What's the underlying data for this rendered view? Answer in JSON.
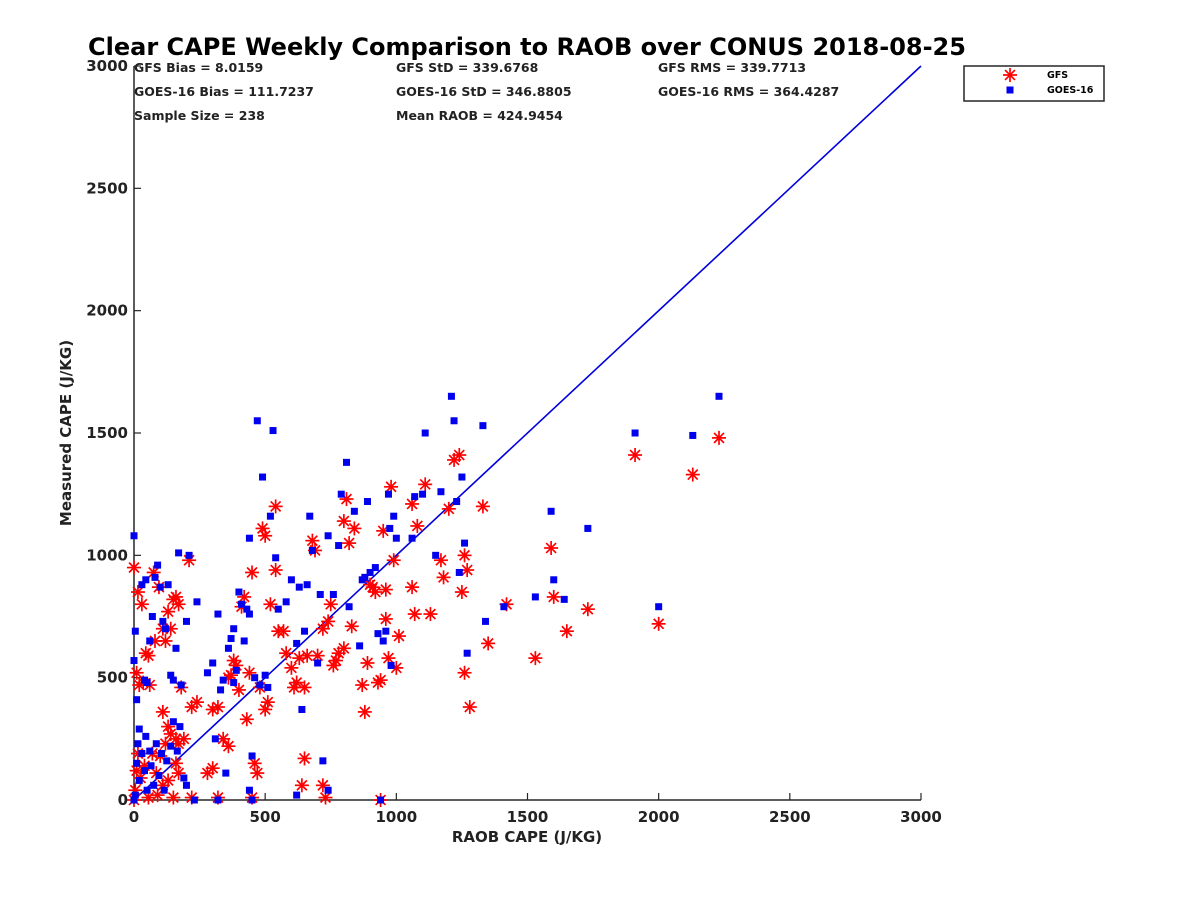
{
  "chart_data": {
    "type": "scatter",
    "title": "Clear CAPE Weekly Comparison to RAOB over CONUS 2018-08-25",
    "xlabel": "RAOB CAPE (J/KG)",
    "ylabel": "Measured CAPE (J/KG)",
    "xlim": [
      0,
      3000
    ],
    "ylim": [
      0,
      3000
    ],
    "xticks": [
      "0",
      "500",
      "1000",
      "1500",
      "2000",
      "2500",
      "3000"
    ],
    "yticks": [
      "0",
      "500",
      "1000",
      "1500",
      "2000",
      "2500",
      "3000"
    ],
    "grid": false,
    "legend_position": "top-right",
    "stats": {
      "gfs_bias": "GFS Bias = 8.0159",
      "gfs_std": "GFS StD = 339.6768",
      "gfs_rms": "GFS RMS = 339.7713",
      "goes_bias": "GOES-16 Bias = 111.7237",
      "goes_std": "GOES-16 StD = 346.8805",
      "goes_rms": "GOES-16 RMS = 364.4287",
      "sample_size": "Sample Size = 238",
      "mean_raob": "Mean RAOB = 424.9454"
    },
    "reference_line": {
      "from": [
        0,
        0
      ],
      "to": [
        3000,
        3000
      ],
      "color": "#0000dd"
    },
    "series": [
      {
        "name": "GFS",
        "marker": "asterisk",
        "color": "#ff0000",
        "points": [
          [
            0,
            950
          ],
          [
            10,
            520
          ],
          [
            15,
            850
          ],
          [
            30,
            800
          ],
          [
            45,
            600
          ],
          [
            55,
            590
          ],
          [
            75,
            930
          ],
          [
            80,
            650
          ],
          [
            95,
            870
          ],
          [
            110,
            700
          ],
          [
            120,
            650
          ],
          [
            130,
            770
          ],
          [
            140,
            700
          ],
          [
            150,
            820
          ],
          [
            160,
            830
          ],
          [
            170,
            800
          ],
          [
            210,
            980
          ],
          [
            20,
            470
          ],
          [
            35,
            480
          ],
          [
            60,
            470
          ],
          [
            110,
            360
          ],
          [
            130,
            300
          ],
          [
            140,
            270
          ],
          [
            160,
            250
          ],
          [
            170,
            230
          ],
          [
            180,
            460
          ],
          [
            190,
            250
          ],
          [
            220,
            380
          ],
          [
            240,
            400
          ],
          [
            280,
            110
          ],
          [
            300,
            370
          ],
          [
            320,
            380
          ],
          [
            340,
            250
          ],
          [
            360,
            220
          ],
          [
            360,
            500
          ],
          [
            370,
            510
          ],
          [
            380,
            570
          ],
          [
            390,
            550
          ],
          [
            400,
            450
          ],
          [
            410,
            790
          ],
          [
            420,
            830
          ],
          [
            430,
            330
          ],
          [
            440,
            520
          ],
          [
            450,
            930
          ],
          [
            460,
            150
          ],
          [
            470,
            110
          ],
          [
            480,
            460
          ],
          [
            490,
            1110
          ],
          [
            500,
            1080
          ],
          [
            500,
            370
          ],
          [
            510,
            400
          ],
          [
            520,
            800
          ],
          [
            540,
            1200
          ],
          [
            540,
            940
          ],
          [
            550,
            690
          ],
          [
            570,
            690
          ],
          [
            580,
            600
          ],
          [
            600,
            540
          ],
          [
            610,
            460
          ],
          [
            620,
            480
          ],
          [
            630,
            580
          ],
          [
            650,
            460
          ],
          [
            660,
            590
          ],
          [
            680,
            1060
          ],
          [
            690,
            1020
          ],
          [
            700,
            590
          ],
          [
            720,
            700
          ],
          [
            740,
            730
          ],
          [
            750,
            800
          ],
          [
            760,
            550
          ],
          [
            770,
            570
          ],
          [
            780,
            600
          ],
          [
            800,
            620
          ],
          [
            800,
            1140
          ],
          [
            810,
            1230
          ],
          [
            820,
            1050
          ],
          [
            830,
            710
          ],
          [
            840,
            1110
          ],
          [
            870,
            470
          ],
          [
            880,
            360
          ],
          [
            890,
            560
          ],
          [
            900,
            880
          ],
          [
            910,
            870
          ],
          [
            920,
            850
          ],
          [
            930,
            480
          ],
          [
            940,
            490
          ],
          [
            950,
            1100
          ],
          [
            960,
            860
          ],
          [
            960,
            740
          ],
          [
            970,
            580
          ],
          [
            980,
            1280
          ],
          [
            990,
            980
          ],
          [
            1000,
            540
          ],
          [
            1010,
            670
          ],
          [
            1060,
            1210
          ],
          [
            1060,
            870
          ],
          [
            1070,
            760
          ],
          [
            1080,
            1120
          ],
          [
            1110,
            1290
          ],
          [
            1130,
            760
          ],
          [
            1170,
            980
          ],
          [
            1180,
            910
          ],
          [
            1200,
            1190
          ],
          [
            1220,
            1390
          ],
          [
            1240,
            1410
          ],
          [
            1250,
            850
          ],
          [
            1260,
            1000
          ],
          [
            1260,
            520
          ],
          [
            1270,
            940
          ],
          [
            1280,
            380
          ],
          [
            1330,
            1200
          ],
          [
            1350,
            640
          ],
          [
            1420,
            800
          ],
          [
            1530,
            580
          ],
          [
            1590,
            1030
          ],
          [
            1600,
            830
          ],
          [
            1650,
            690
          ],
          [
            1730,
            780
          ],
          [
            1910,
            1410
          ],
          [
            2000,
            720
          ],
          [
            2130,
            1330
          ],
          [
            2230,
            1480
          ],
          [
            0,
            0
          ],
          [
            5,
            40
          ],
          [
            10,
            120
          ],
          [
            15,
            190
          ],
          [
            25,
            90
          ],
          [
            40,
            140
          ],
          [
            55,
            10
          ],
          [
            70,
            190
          ],
          [
            85,
            110
          ],
          [
            90,
            20
          ],
          [
            100,
            180
          ],
          [
            110,
            60
          ],
          [
            120,
            230
          ],
          [
            130,
            80
          ],
          [
            150,
            10
          ],
          [
            160,
            150
          ],
          [
            170,
            110
          ],
          [
            220,
            10
          ],
          [
            300,
            130
          ],
          [
            320,
            10
          ],
          [
            450,
            10
          ],
          [
            640,
            60
          ],
          [
            650,
            170
          ],
          [
            720,
            60
          ],
          [
            730,
            10
          ],
          [
            940,
            0
          ]
        ]
      },
      {
        "name": "GOES-16",
        "marker": "square",
        "color": "#0000ee",
        "points": [
          [
            0,
            1080
          ],
          [
            0,
            570
          ],
          [
            5,
            690
          ],
          [
            10,
            410
          ],
          [
            20,
            290
          ],
          [
            30,
            880
          ],
          [
            40,
            490
          ],
          [
            45,
            900
          ],
          [
            50,
            480
          ],
          [
            60,
            650
          ],
          [
            70,
            750
          ],
          [
            80,
            910
          ],
          [
            90,
            960
          ],
          [
            100,
            870
          ],
          [
            110,
            730
          ],
          [
            120,
            700
          ],
          [
            130,
            880
          ],
          [
            140,
            510
          ],
          [
            150,
            490
          ],
          [
            160,
            620
          ],
          [
            170,
            1010
          ],
          [
            180,
            470
          ],
          [
            200,
            730
          ],
          [
            210,
            1000
          ],
          [
            240,
            810
          ],
          [
            280,
            520
          ],
          [
            300,
            560
          ],
          [
            310,
            250
          ],
          [
            320,
            760
          ],
          [
            330,
            450
          ],
          [
            340,
            490
          ],
          [
            350,
            110
          ],
          [
            360,
            620
          ],
          [
            370,
            660
          ],
          [
            380,
            700
          ],
          [
            390,
            530
          ],
          [
            400,
            850
          ],
          [
            410,
            800
          ],
          [
            420,
            650
          ],
          [
            430,
            780
          ],
          [
            440,
            760
          ],
          [
            440,
            1070
          ],
          [
            450,
            180
          ],
          [
            460,
            500
          ],
          [
            470,
            1550
          ],
          [
            480,
            470
          ],
          [
            490,
            1320
          ],
          [
            500,
            510
          ],
          [
            510,
            460
          ],
          [
            520,
            1160
          ],
          [
            530,
            1510
          ],
          [
            540,
            990
          ],
          [
            550,
            780
          ],
          [
            580,
            810
          ],
          [
            600,
            900
          ],
          [
            620,
            640
          ],
          [
            630,
            870
          ],
          [
            640,
            370
          ],
          [
            650,
            690
          ],
          [
            660,
            880
          ],
          [
            670,
            1160
          ],
          [
            680,
            1020
          ],
          [
            700,
            560
          ],
          [
            710,
            840
          ],
          [
            740,
            1080
          ],
          [
            760,
            840
          ],
          [
            780,
            1040
          ],
          [
            790,
            1250
          ],
          [
            810,
            1380
          ],
          [
            820,
            790
          ],
          [
            840,
            1180
          ],
          [
            860,
            630
          ],
          [
            870,
            900
          ],
          [
            880,
            910
          ],
          [
            890,
            1220
          ],
          [
            900,
            930
          ],
          [
            920,
            950
          ],
          [
            930,
            680
          ],
          [
            950,
            650
          ],
          [
            960,
            690
          ],
          [
            970,
            1250
          ],
          [
            975,
            1110
          ],
          [
            980,
            550
          ],
          [
            990,
            1160
          ],
          [
            1000,
            1070
          ],
          [
            1060,
            1070
          ],
          [
            1070,
            1240
          ],
          [
            1100,
            1250
          ],
          [
            1110,
            1500
          ],
          [
            1150,
            1000
          ],
          [
            1170,
            1260
          ],
          [
            1210,
            1650
          ],
          [
            1220,
            1550
          ],
          [
            1230,
            1220
          ],
          [
            1240,
            930
          ],
          [
            1250,
            1320
          ],
          [
            1260,
            1050
          ],
          [
            1270,
            600
          ],
          [
            1330,
            1530
          ],
          [
            1340,
            730
          ],
          [
            1410,
            790
          ],
          [
            1530,
            830
          ],
          [
            1590,
            1180
          ],
          [
            1600,
            900
          ],
          [
            1640,
            820
          ],
          [
            1730,
            1110
          ],
          [
            1910,
            1500
          ],
          [
            2000,
            790
          ],
          [
            2130,
            1490
          ],
          [
            2230,
            1650
          ],
          [
            0,
            0
          ],
          [
            5,
            20
          ],
          [
            10,
            150
          ],
          [
            15,
            230
          ],
          [
            20,
            80
          ],
          [
            30,
            190
          ],
          [
            40,
            120
          ],
          [
            45,
            260
          ],
          [
            50,
            40
          ],
          [
            60,
            200
          ],
          [
            65,
            140
          ],
          [
            75,
            60
          ],
          [
            85,
            230
          ],
          [
            95,
            100
          ],
          [
            105,
            190
          ],
          [
            115,
            40
          ],
          [
            125,
            160
          ],
          [
            140,
            220
          ],
          [
            150,
            320
          ],
          [
            165,
            200
          ],
          [
            175,
            300
          ],
          [
            190,
            90
          ],
          [
            200,
            60
          ],
          [
            230,
            0
          ],
          [
            320,
            0
          ],
          [
            380,
            480
          ],
          [
            440,
            40
          ],
          [
            450,
            0
          ],
          [
            620,
            20
          ],
          [
            720,
            160
          ],
          [
            740,
            40
          ],
          [
            940,
            0
          ]
        ]
      }
    ]
  }
}
